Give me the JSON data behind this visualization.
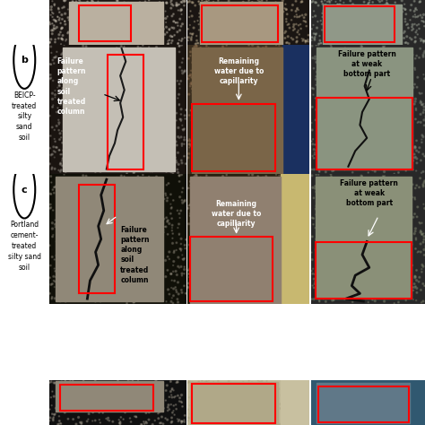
{
  "background_color": "#ffffff",
  "figsize": [
    4.74,
    4.74
  ],
  "dpi": 100,
  "row_labels": [
    {
      "circle_label": "b",
      "subtext": "BEICP-\ntreated\nsilty\nsand\nsoil",
      "row": 1
    },
    {
      "circle_label": "c",
      "subtext": "Portland\ncement-\ntreated\nsilty sand\nsoil",
      "row": 2
    }
  ],
  "panels": {
    "r0c0": {
      "color": "#b0a898",
      "dark_bg": "#1a1512"
    },
    "r0c1": {
      "color": "#a89880"
    },
    "r0c2": {
      "color": "#909090"
    },
    "r1c0": {
      "color": "#c8c4bb",
      "dark_bg": "#8a7a5e"
    },
    "r1c1": {
      "color": "#7a6548"
    },
    "r1c2": {
      "color": "#8a9480"
    },
    "r2c0": {
      "color": "#908878",
      "dark_bg": "#3a3020"
    },
    "r2c1": {
      "color": "#908070"
    },
    "r2c2": {
      "color": "#8a9078"
    },
    "r3c0": {
      "color": "#1a1818"
    },
    "r3c1": {
      "color": "#c8c0b0"
    },
    "r3c2": {
      "color": "#606858"
    }
  },
  "annotations": {
    "b_col0_text": "Failure\npattern\nalong\nsoil\ntreated\ncolumn",
    "b_col0_color": "#ffffff",
    "b_col1_text": "Remaining\nwater due to\ncapillarity",
    "b_col1_color": "#ffffff",
    "b_col2_text": "Failure pattern\nat weak\nbottom part",
    "b_col2_color": "#000000",
    "c_col0_text": "Failure\npattern\nalong\nsoil\ntreated\ncolumn",
    "c_col0_color": "#000000",
    "c_col1_text": "Remaining\nwater due to\ncapillarity",
    "c_col1_color": "#ffffff",
    "c_col2_text": "Failure pattern\nat weak\nbottom part",
    "c_col2_color": "#000000"
  },
  "red": "#ff0000",
  "white": "#ffffff",
  "black": "#000000",
  "fontsize_annot": 5.5,
  "fontsize_label": 5.5,
  "fontsize_circle": 8
}
